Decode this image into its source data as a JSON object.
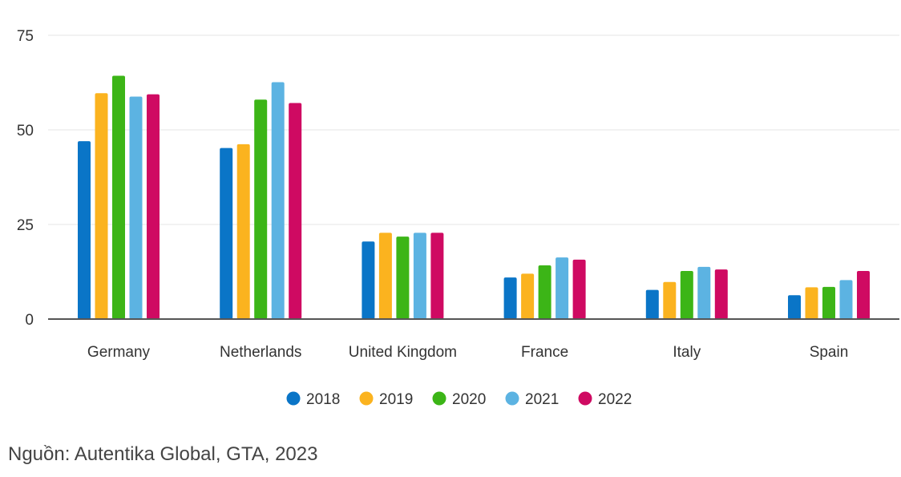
{
  "chart_data": {
    "type": "bar",
    "title": "",
    "xlabel": "",
    "ylabel": "",
    "ylim": [
      0,
      75
    ],
    "yticks": [
      0,
      25,
      50,
      75
    ],
    "grid": true,
    "legend_position": "bottom",
    "categories": [
      "Germany",
      "Netherlands",
      "United Kingdom",
      "France",
      "Italy",
      "Spain"
    ],
    "series": [
      {
        "name": "2018",
        "color": "#0a75c7",
        "values": [
          47,
          45.2,
          20.5,
          11,
          7.7,
          6.3
        ]
      },
      {
        "name": "2019",
        "color": "#fbb31f",
        "values": [
          59.7,
          46.2,
          22.8,
          12,
          9.8,
          8.4
        ]
      },
      {
        "name": "2020",
        "color": "#3cb517",
        "values": [
          64.3,
          58,
          21.8,
          14.2,
          12.7,
          8.5
        ]
      },
      {
        "name": "2021",
        "color": "#5cb3e2",
        "values": [
          58.8,
          62.6,
          22.8,
          16.3,
          13.8,
          10.3
        ]
      },
      {
        "name": "2022",
        "color": "#cf0a62",
        "values": [
          59.4,
          57.1,
          22.8,
          15.7,
          13.1,
          12.7
        ]
      }
    ]
  },
  "source": "Nguồn: Autentika Global, GTA, 2023"
}
